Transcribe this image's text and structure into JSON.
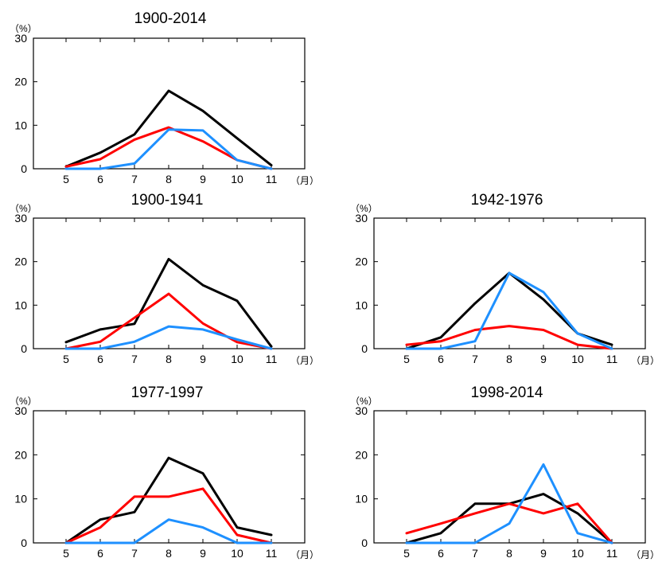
{
  "figure": {
    "colors": {
      "black": "#000000",
      "red": "#ff0000",
      "blue": "#1e90ff"
    }
  },
  "chart_data": [
    {
      "type": "line",
      "title": "1900-2014",
      "ylabel": "（%）",
      "xunit": "（月）",
      "x": [
        5,
        6,
        7,
        8,
        9,
        10,
        11
      ],
      "xticks": [
        "5",
        "6",
        "7",
        "8",
        "9",
        "10",
        "11"
      ],
      "ylim": [
        0,
        30
      ],
      "yticks": [
        0,
        10,
        20,
        30
      ],
      "series": [
        {
          "color": "black",
          "values": [
            0.5,
            3.7,
            7.9,
            17.9,
            13.3,
            7.0,
            0.8
          ]
        },
        {
          "color": "red",
          "values": [
            0.5,
            2.2,
            6.7,
            9.5,
            6.3,
            2.0,
            0.0
          ]
        },
        {
          "color": "blue",
          "values": [
            0.0,
            0.0,
            1.2,
            9.0,
            8.8,
            2.0,
            0.0
          ]
        }
      ]
    },
    {
      "type": "line",
      "title": "1900-1941",
      "ylabel": "（%）",
      "xunit": "（月）",
      "x": [
        5,
        6,
        7,
        8,
        9,
        10,
        11
      ],
      "xticks": [
        "5",
        "6",
        "7",
        "8",
        "9",
        "10",
        "11"
      ],
      "ylim": [
        0,
        30
      ],
      "yticks": [
        0,
        10,
        20,
        30
      ],
      "series": [
        {
          "color": "black",
          "values": [
            1.5,
            4.4,
            5.7,
            20.6,
            14.6,
            11.0,
            0.5
          ]
        },
        {
          "color": "red",
          "values": [
            0.0,
            1.6,
            7.1,
            12.6,
            5.8,
            1.5,
            0.0
          ]
        },
        {
          "color": "blue",
          "values": [
            0.0,
            0.0,
            1.6,
            5.1,
            4.4,
            2.1,
            0.0
          ]
        }
      ]
    },
    {
      "type": "line",
      "title": "1942-1976",
      "ylabel": "（%）",
      "xunit": "（月）",
      "x": [
        5,
        6,
        7,
        8,
        9,
        10,
        11
      ],
      "xticks": [
        "5",
        "6",
        "7",
        "8",
        "9",
        "10",
        "11"
      ],
      "ylim": [
        0,
        30
      ],
      "yticks": [
        0,
        10,
        20,
        30
      ],
      "series": [
        {
          "color": "black",
          "values": [
            0.0,
            2.6,
            10.4,
            17.4,
            11.3,
            3.5,
            0.9
          ]
        },
        {
          "color": "red",
          "values": [
            0.9,
            1.7,
            4.3,
            5.2,
            4.3,
            0.9,
            0.0
          ]
        },
        {
          "color": "blue",
          "values": [
            0.0,
            0.0,
            1.7,
            17.4,
            13.0,
            3.5,
            0.0
          ]
        }
      ]
    },
    {
      "type": "line",
      "title": "1977-1997",
      "ylabel": "（%）",
      "xunit": "（月）",
      "x": [
        5,
        6,
        7,
        8,
        9,
        10,
        11
      ],
      "xticks": [
        "5",
        "6",
        "7",
        "8",
        "9",
        "10",
        "11"
      ],
      "ylim": [
        0,
        30
      ],
      "yticks": [
        0,
        10,
        20,
        30
      ],
      "series": [
        {
          "color": "black",
          "values": [
            0.0,
            5.3,
            7.0,
            19.3,
            15.8,
            3.5,
            1.8
          ]
        },
        {
          "color": "red",
          "values": [
            0.0,
            3.5,
            10.5,
            10.5,
            12.3,
            1.8,
            0.0
          ]
        },
        {
          "color": "blue",
          "values": [
            0.0,
            0.0,
            0.0,
            5.3,
            3.5,
            0.0,
            0.0
          ]
        }
      ]
    },
    {
      "type": "line",
      "title": "1998-2014",
      "ylabel": "（%）",
      "xunit": "（月）",
      "x": [
        5,
        6,
        7,
        8,
        9,
        10,
        11
      ],
      "xticks": [
        "5",
        "6",
        "7",
        "8",
        "9",
        "10",
        "11"
      ],
      "ylim": [
        0,
        30
      ],
      "yticks": [
        0,
        10,
        20,
        30
      ],
      "series": [
        {
          "color": "black",
          "values": [
            0.0,
            2.2,
            8.9,
            8.9,
            11.1,
            6.7,
            0.0
          ]
        },
        {
          "color": "red",
          "values": [
            2.2,
            4.4,
            6.7,
            8.9,
            6.7,
            8.9,
            0.0
          ]
        },
        {
          "color": "blue",
          "values": [
            0.0,
            0.0,
            0.0,
            4.4,
            17.8,
            2.2,
            0.0
          ]
        }
      ]
    }
  ]
}
